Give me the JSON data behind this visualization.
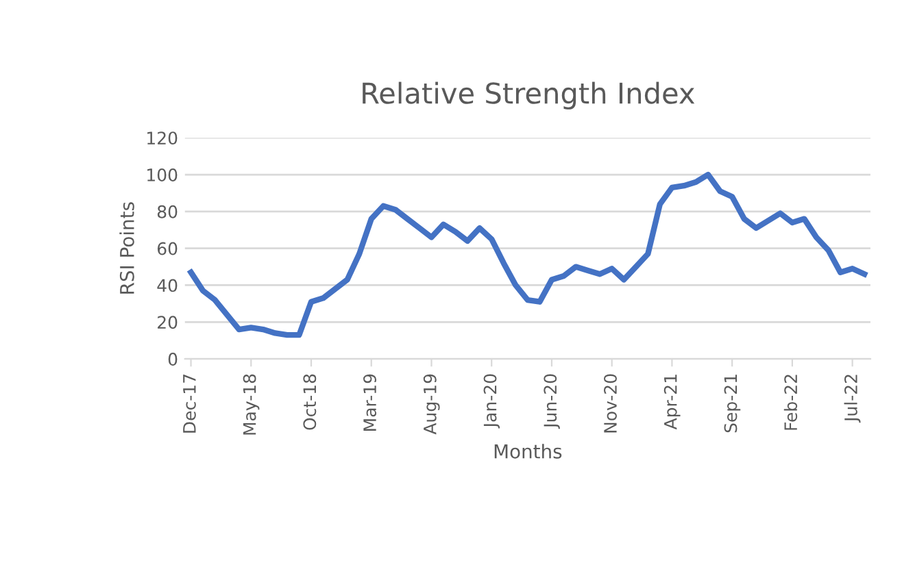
{
  "chart_data": {
    "type": "line",
    "title": "Relative Strength Index",
    "xlabel": "Months",
    "ylabel": "RSI Points",
    "categories": [
      "Dec-17",
      null,
      null,
      null,
      null,
      "May-18",
      null,
      null,
      null,
      null,
      "Oct-18",
      null,
      null,
      null,
      null,
      "Mar-19",
      null,
      null,
      null,
      null,
      "Aug-19",
      null,
      null,
      null,
      null,
      "Jan-20",
      null,
      null,
      null,
      null,
      "Jun-20",
      null,
      null,
      null,
      null,
      "Nov-20",
      null,
      null,
      null,
      null,
      "Apr-21",
      null,
      null,
      null,
      null,
      "Sep-21",
      null,
      null,
      null,
      null,
      "Feb-22",
      null,
      null,
      null,
      null,
      "Jul-22",
      null
    ],
    "series": [
      {
        "color": "#4472c4",
        "values": [
          47,
          37,
          32,
          24,
          16,
          17,
          16,
          14,
          13,
          13,
          31,
          33,
          38,
          43,
          57,
          76,
          83,
          81,
          76,
          71,
          66,
          73,
          69,
          64,
          71,
          65,
          52,
          40,
          32,
          31,
          43,
          45,
          50,
          48,
          46,
          49,
          43,
          50,
          57,
          84,
          93,
          94,
          96,
          100,
          91,
          88,
          76,
          71,
          75,
          79,
          74,
          76,
          66,
          59,
          47,
          49,
          46
        ]
      }
    ],
    "ylim": [
      0,
      120
    ],
    "yticks": [
      0,
      20,
      40,
      60,
      80,
      100,
      120
    ],
    "grid": "y",
    "marker": "none",
    "line_style": "solid"
  }
}
